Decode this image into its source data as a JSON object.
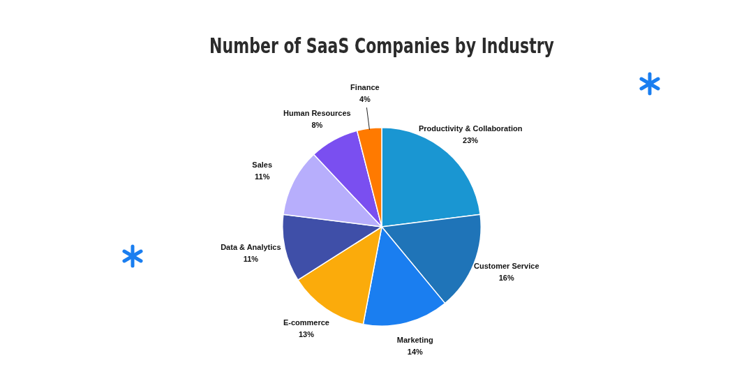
{
  "chart_data": {
    "type": "pie",
    "title": "Number of SaaS Companies by Industry",
    "categories": [
      "Productivity & Collaboration",
      "Customer Service",
      "Marketing",
      "E-commerce",
      "Data & Analytics",
      "Sales",
      "Human Resources",
      "Finance"
    ],
    "values": [
      23,
      16,
      14,
      13,
      11,
      11,
      8,
      4
    ],
    "value_labels": [
      "23%",
      "16%",
      "14%",
      "13%",
      "11%",
      "11%",
      "8%",
      "4%"
    ],
    "colors": [
      "#1a96d2",
      "#1f74b8",
      "#1a7ef0",
      "#fbab0b",
      "#3f4fa8",
      "#b7aefc",
      "#7a4ff0",
      "#ff7a00"
    ],
    "legend": false
  }
}
